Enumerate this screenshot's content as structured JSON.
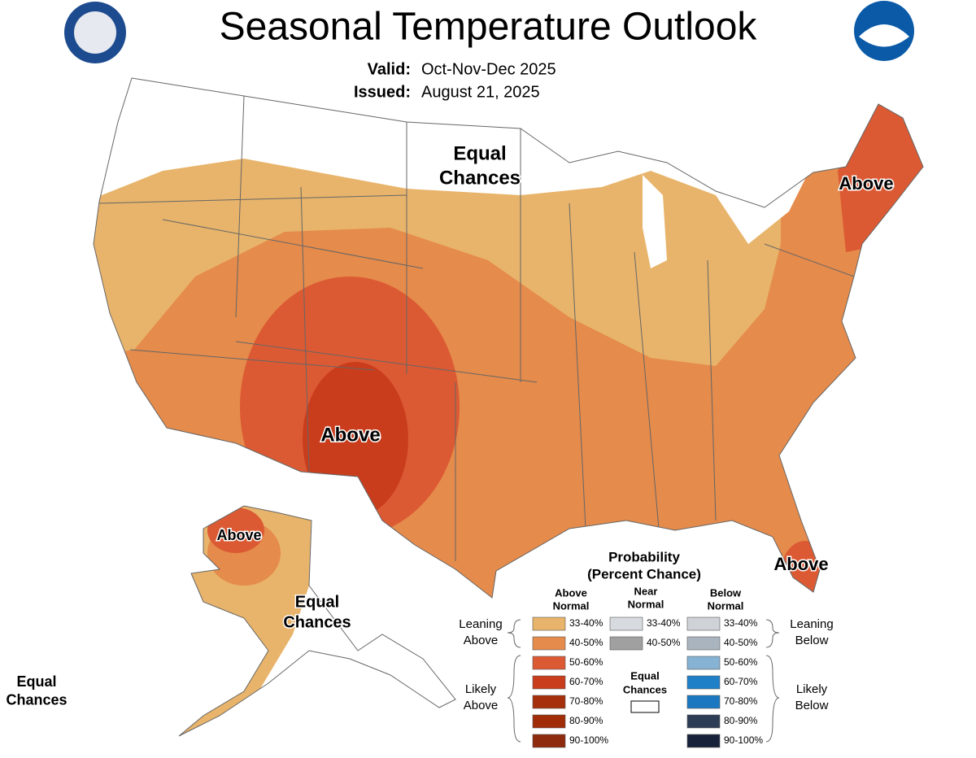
{
  "header": {
    "title": "Seasonal Temperature Outlook",
    "valid_label": "Valid:",
    "valid": "Oct-Nov-Dec 2025",
    "issued_label": "Issued:",
    "issued": "August 21, 2025"
  },
  "map_labels": [
    {
      "lines": [
        "Equal",
        "Chances"
      ]
    },
    {
      "lines": [
        "Above"
      ]
    },
    {
      "lines": [
        "Above"
      ]
    },
    {
      "lines": [
        "Above"
      ]
    },
    {
      "lines": [
        "Above"
      ]
    },
    {
      "lines": [
        "Equal",
        "Chances"
      ]
    },
    {
      "lines": [
        "Equal",
        "Chances"
      ]
    }
  ],
  "legend": {
    "title": [
      "Probability",
      "(Percent Chance)"
    ],
    "columns": [
      {
        "header": [
          "Above",
          "Normal"
        ],
        "items": [
          {
            "label": "33-40%",
            "color": "#e8b46b"
          },
          {
            "label": "40-50%",
            "color": "#e58b4b"
          },
          {
            "label": "50-60%",
            "color": "#dc5a33"
          },
          {
            "label": "60-70%",
            "color": "#c93d1d"
          },
          {
            "label": "70-80%",
            "color": "#a5300b"
          },
          {
            "label": "80-90%",
            "color": "#a02c08"
          },
          {
            "label": "90-100%",
            "color": "#8e2a0d"
          }
        ]
      },
      {
        "header": [
          "Near",
          "Normal"
        ],
        "items": [
          {
            "label": "33-40%",
            "color": "#d7dade"
          },
          {
            "label": "40-50%",
            "color": "#a0a0a0"
          }
        ]
      },
      {
        "header": [
          "Below",
          "Normal"
        ],
        "items": [
          {
            "label": "33-40%",
            "color": "#cfd3d8"
          },
          {
            "label": "40-50%",
            "color": "#aab4bf"
          },
          {
            "label": "50-60%",
            "color": "#86b2d3"
          },
          {
            "label": "60-70%",
            "color": "#1f80c8"
          },
          {
            "label": "70-80%",
            "color": "#1b78c0"
          },
          {
            "label": "80-90%",
            "color": "#2d3d55"
          },
          {
            "label": "90-100%",
            "color": "#17223a"
          }
        ]
      }
    ],
    "equal_chances": [
      "Equal",
      "Chances"
    ],
    "sides": [
      [
        "Leaning",
        "Above"
      ],
      [
        "Likely",
        "Above"
      ],
      [
        "Leaning",
        "Below"
      ],
      [
        "Likely",
        "Below"
      ]
    ]
  }
}
